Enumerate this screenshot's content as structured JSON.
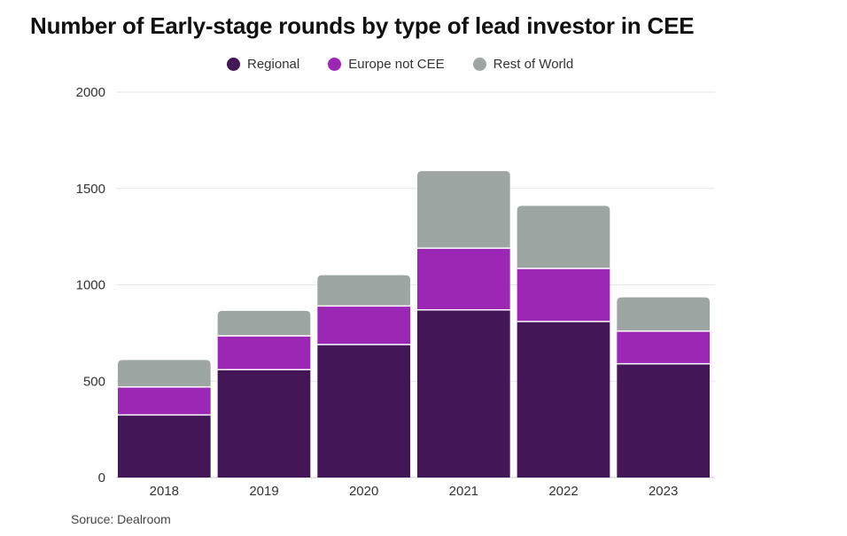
{
  "chart_data": {
    "type": "bar",
    "stacked": true,
    "title": "Number of Early-stage rounds by type of lead investor in CEE",
    "categories": [
      "2018",
      "2019",
      "2020",
      "2021",
      "2022",
      "2023"
    ],
    "series": [
      {
        "name": "Regional",
        "color": "#431658",
        "values": [
          325,
          560,
          690,
          870,
          810,
          590
        ]
      },
      {
        "name": "Europe not CEE",
        "color": "#9c27b5",
        "values": [
          145,
          175,
          200,
          320,
          275,
          170
        ]
      },
      {
        "name": "Rest of World",
        "color": "#9ea6a4",
        "values": [
          140,
          130,
          160,
          400,
          325,
          175
        ]
      }
    ],
    "ylim": [
      0,
      2000
    ],
    "yticks": [
      "0",
      "500",
      "1000",
      "1500",
      "2000"
    ],
    "xlabel": "",
    "ylabel": "",
    "legend_position": "top-center",
    "grid": true
  },
  "source_note": "Soruce: Dealroom"
}
